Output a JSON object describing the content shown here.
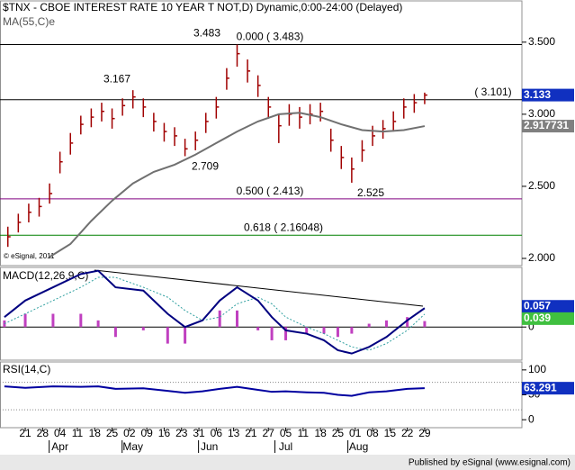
{
  "chart_data": [
    {
      "type": "hlc",
      "title": "$TNX - CBOE INTEREST RATE 10 YEAR T NOT,D) Dynamic,0:00-24:00 (Delayed)",
      "copyright": "© eSignal, 2011",
      "color": "#a00000",
      "xlim": [
        0,
        149
      ],
      "ylim": [
        1.95,
        3.78
      ],
      "yticks": [
        {
          "value": 3.5,
          "label": "3.500"
        },
        {
          "value": 3.0,
          "label": "3.000"
        },
        {
          "value": 2.5,
          "label": "2.500"
        },
        {
          "value": 2.0,
          "label": "2.000"
        }
      ],
      "bars": {
        "x": [
          1,
          4,
          7,
          10,
          13,
          16,
          19,
          22,
          25,
          28,
          31,
          34,
          37,
          40,
          43,
          46,
          49,
          52,
          55,
          58,
          61,
          64,
          67,
          70,
          73,
          76,
          79,
          82,
          85,
          88,
          91,
          94,
          97,
          100,
          103,
          106,
          109,
          112,
          115,
          118,
          121
        ],
        "high": [
          2.22,
          2.31,
          2.38,
          2.42,
          2.52,
          2.74,
          2.87,
          2.99,
          3.04,
          3.08,
          3.04,
          3.11,
          3.167,
          3.11,
          3.01,
          2.94,
          2.91,
          2.83,
          2.88,
          3.01,
          3.12,
          3.32,
          3.483,
          3.38,
          3.27,
          3.12,
          3.0,
          3.07,
          3.05,
          3.07,
          3.08,
          2.9,
          2.78,
          2.7,
          2.82,
          2.92,
          2.96,
          3.02,
          3.11,
          3.14,
          3.15
        ],
        "low": [
          2.08,
          2.18,
          2.25,
          2.29,
          2.38,
          2.59,
          2.72,
          2.86,
          2.91,
          2.95,
          2.9,
          2.99,
          3.04,
          2.98,
          2.88,
          2.81,
          2.78,
          2.709,
          2.75,
          2.87,
          2.97,
          3.17,
          3.33,
          3.22,
          3.12,
          2.97,
          2.8,
          2.92,
          2.9,
          2.93,
          2.95,
          2.74,
          2.62,
          2.525,
          2.67,
          2.78,
          2.83,
          2.88,
          2.97,
          3.01,
          3.07
        ],
        "close": [
          2.15,
          2.25,
          2.32,
          2.36,
          2.45,
          2.67,
          2.8,
          2.93,
          2.98,
          3.02,
          2.97,
          3.06,
          3.12,
          3.05,
          2.95,
          2.88,
          2.85,
          2.76,
          2.82,
          2.95,
          3.05,
          3.25,
          3.42,
          3.3,
          3.2,
          3.05,
          2.92,
          3.0,
          2.98,
          3.0,
          3.02,
          2.82,
          2.7,
          2.62,
          2.75,
          2.85,
          2.9,
          2.95,
          3.05,
          3.08,
          3.133
        ]
      },
      "ma": {
        "name": "MA(55,C)e",
        "color": "#707070",
        "x": [
          13,
          19,
          25,
          31,
          37,
          43,
          49,
          55,
          61,
          67,
          73,
          79,
          85,
          91,
          97,
          103,
          109,
          115,
          121
        ],
        "values": [
          2.01,
          2.1,
          2.26,
          2.4,
          2.52,
          2.6,
          2.65,
          2.72,
          2.8,
          2.88,
          2.95,
          3.0,
          3.01,
          2.98,
          2.93,
          2.89,
          2.88,
          2.89,
          2.917731
        ]
      },
      "levels": [
        {
          "value": 3.483,
          "label": "0.000 ( 3.483)",
          "color": "#000000"
        },
        {
          "value": 3.101,
          "label": "( 3.101)",
          "color": "#000000"
        },
        {
          "value": 2.413,
          "label": "0.500 ( 2.413)",
          "color": "#800080"
        },
        {
          "value": 2.16048,
          "label": "0.618 ( 2.16048)",
          "color": "#008000"
        }
      ],
      "annotations": [
        3.483,
        3.167,
        2.709,
        2.525
      ]
    },
    {
      "type": "macd",
      "title": "MACD(12,26,9,C)",
      "xlim": [
        0,
        149
      ],
      "ylim": [
        -0.1,
        0.18
      ],
      "yticks": [
        0
      ],
      "x": [
        0,
        6,
        14,
        22,
        27,
        32,
        40,
        47,
        52,
        57,
        62,
        67,
        73,
        77,
        81,
        87,
        92,
        96,
        100,
        105,
        110,
        116,
        121
      ],
      "series": [
        {
          "style": "histogram",
          "color": "#c040c0",
          "values": [
            0.02,
            0.04,
            0.04,
            0.04,
            0.02,
            -0.03,
            -0.01,
            -0.05,
            -0.05,
            0.0,
            0.05,
            0.05,
            -0.01,
            -0.04,
            -0.04,
            -0.02,
            -0.02,
            -0.03,
            -0.02,
            0.01,
            0.02,
            0.03,
            0.018
          ]
        },
        {
          "style": "dotted",
          "color": "#30a0a0",
          "values": [
            0.01,
            0.04,
            0.08,
            0.12,
            0.15,
            0.15,
            0.12,
            0.09,
            0.05,
            0.02,
            0.03,
            0.07,
            0.09,
            0.07,
            0.03,
            0.0,
            -0.02,
            -0.04,
            -0.06,
            -0.07,
            -0.05,
            -0.01,
            0.039
          ]
        },
        {
          "style": "line",
          "color": "#000080",
          "values": [
            0.03,
            0.08,
            0.12,
            0.16,
            0.17,
            0.12,
            0.11,
            0.04,
            0.0,
            0.02,
            0.08,
            0.12,
            0.08,
            0.03,
            -0.01,
            -0.02,
            -0.04,
            -0.07,
            -0.08,
            -0.06,
            -0.03,
            0.02,
            0.057
          ]
        }
      ]
    },
    {
      "type": "line",
      "title": "RSI(14,C)",
      "xlim": [
        0,
        149
      ],
      "ylim": [
        -16,
        116
      ],
      "yticks": [
        0,
        50,
        100
      ],
      "bands": [
        75,
        20
      ],
      "x": [
        0,
        6,
        14,
        22,
        27,
        32,
        40,
        47,
        52,
        57,
        62,
        67,
        73,
        77,
        81,
        87,
        92,
        96,
        100,
        105,
        110,
        116,
        121
      ],
      "series": [
        {
          "color": "#0000a0",
          "values": [
            67,
            64,
            67,
            66,
            67,
            62,
            63,
            58,
            54,
            57,
            62,
            66,
            60,
            56,
            57,
            55,
            54,
            50,
            48,
            55,
            57,
            62,
            63.291
          ]
        }
      ],
      "xticks": [
        {
          "value": 6,
          "label": "21"
        },
        {
          "value": 11,
          "label": "28"
        },
        {
          "value": 16,
          "label": "04"
        },
        {
          "value": 21,
          "label": "11"
        },
        {
          "value": 26,
          "label": "18"
        },
        {
          "value": 31,
          "label": "25"
        },
        {
          "value": 36,
          "label": "02"
        },
        {
          "value": 41,
          "label": "09"
        },
        {
          "value": 46,
          "label": "16"
        },
        {
          "value": 51,
          "label": "23"
        },
        {
          "value": 56,
          "label": "31"
        },
        {
          "value": 61,
          "label": "06"
        },
        {
          "value": 66,
          "label": "13"
        },
        {
          "value": 71,
          "label": "21"
        },
        {
          "value": 76,
          "label": "27"
        },
        {
          "value": 81,
          "label": "05"
        },
        {
          "value": 86,
          "label": "11"
        },
        {
          "value": 91,
          "label": "18"
        },
        {
          "value": 96,
          "label": "25"
        },
        {
          "value": 101,
          "label": "01"
        },
        {
          "value": 106,
          "label": "08"
        },
        {
          "value": 111,
          "label": "15"
        },
        {
          "value": 116,
          "label": "22"
        },
        {
          "value": 121,
          "label": "29"
        }
      ],
      "month_ticks": [
        {
          "value": 16,
          "label": "Apr"
        },
        {
          "value": 37,
          "label": "May"
        },
        {
          "value": 59,
          "label": "Jun"
        },
        {
          "value": 81,
          "label": "Jul"
        },
        {
          "value": 102,
          "label": "Aug"
        }
      ]
    }
  ],
  "footer": "Published by eSignal (www.esignal.com)"
}
